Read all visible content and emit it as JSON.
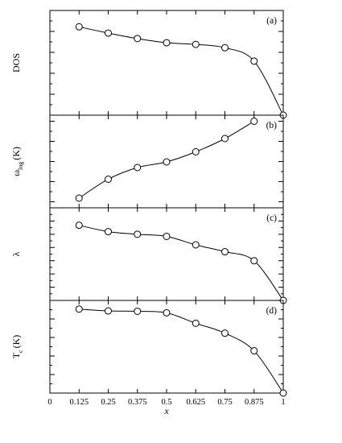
{
  "chart_data": [
    {
      "type": "line",
      "panel_label": "(a)",
      "ylabel": "DOS",
      "ylim": [
        0,
        25
      ],
      "yticks": [
        "0",
        "5",
        "10",
        "15",
        "20",
        "25"
      ],
      "ytick_values": [
        0,
        5,
        10,
        15,
        20,
        25
      ],
      "x": [
        0.125,
        0.25,
        0.375,
        0.5,
        0.625,
        0.75,
        0.875,
        1
      ],
      "values": [
        21.1,
        19.6,
        18.3,
        17.3,
        16.9,
        16.1,
        12.9,
        0
      ]
    },
    {
      "type": "line",
      "panel_label": "(b)",
      "ylabel_main": "ω",
      "ylabel_sub": "log",
      "ylabel_unit": "(K)",
      "ylim": [
        585,
        815
      ],
      "yticks": [
        "600",
        "650",
        "700",
        "750",
        "800"
      ],
      "ytick_values": [
        600,
        650,
        700,
        750,
        800
      ],
      "x": [
        0.125,
        0.25,
        0.375,
        0.5,
        0.625,
        0.75,
        0.875
      ],
      "values": [
        609,
        656,
        685,
        699,
        724,
        757,
        800
      ]
    },
    {
      "type": "line",
      "panel_label": "(c)",
      "ylabel": "λ",
      "ylim": [
        0,
        1.75
      ],
      "yticks": [
        "0",
        "0.25",
        "0.5",
        "0.75",
        "1",
        "1.25",
        "1.5",
        "1.75"
      ],
      "ytick_values": [
        0,
        0.25,
        0.5,
        0.75,
        1,
        1.25,
        1.5,
        1.75
      ],
      "x": [
        0.125,
        0.25,
        0.375,
        0.5,
        0.625,
        0.75,
        0.875,
        1
      ],
      "values": [
        1.42,
        1.3,
        1.25,
        1.21,
        1.05,
        0.92,
        0.75,
        0
      ]
    },
    {
      "type": "line",
      "panel_label": "(d)",
      "ylabel_main": "T",
      "ylabel_sub": "c",
      "ylabel_unit": "(K)",
      "ylim": [
        0,
        75
      ],
      "yticks": [
        "0",
        "15",
        "30",
        "45",
        "60",
        "75"
      ],
      "ytick_values": [
        0,
        15,
        30,
        45,
        60,
        75
      ],
      "x": [
        0.125,
        0.25,
        0.375,
        0.5,
        0.625,
        0.75,
        0.875,
        1
      ],
      "values": [
        68,
        66.5,
        66.2,
        65,
        56.5,
        48.5,
        34.2,
        0
      ]
    }
  ],
  "x_axis": {
    "label": "x",
    "xlim": [
      0,
      1
    ],
    "ticks": [
      "0",
      "0.125",
      "0.25",
      "0.375",
      "0.5",
      "0.625",
      "0.75",
      "0.875",
      "1"
    ],
    "tick_values": [
      0,
      0.125,
      0.25,
      0.375,
      0.5,
      0.625,
      0.75,
      0.875,
      1
    ]
  }
}
